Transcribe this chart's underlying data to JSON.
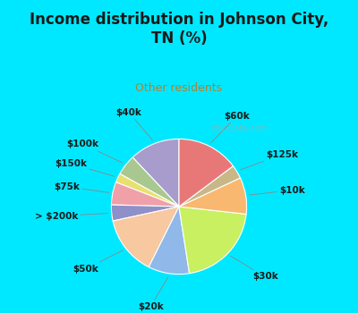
{
  "title": "Income distribution in Johnson City,\nTN (%)",
  "subtitle": "Other residents",
  "title_color": "#1a1a1a",
  "subtitle_color": "#b08030",
  "background_cyan": "#00e8ff",
  "background_chart": "#e0f0e8",
  "watermark": "city-Data.com",
  "slices": [
    {
      "label": "$40k",
      "value": 11.0,
      "color": "#a89ccc"
    },
    {
      "label": "$100k",
      "value": 4.5,
      "color": "#a8c890"
    },
    {
      "label": "$150k",
      "value": 2.0,
      "color": "#e8e070"
    },
    {
      "label": "$75k",
      "value": 5.0,
      "color": "#f0a0a8"
    },
    {
      "label": "> $200k",
      "value": 3.5,
      "color": "#9090c8"
    },
    {
      "label": "$50k",
      "value": 13.0,
      "color": "#f8c8a0"
    },
    {
      "label": "$20k",
      "value": 9.0,
      "color": "#90b8e8"
    },
    {
      "label": "$30k",
      "value": 19.0,
      "color": "#c8f060"
    },
    {
      "label": "$10k",
      "value": 8.0,
      "color": "#f8b870"
    },
    {
      "label": "$125k",
      "value": 3.0,
      "color": "#c8b888"
    },
    {
      "label": "$60k",
      "value": 13.5,
      "color": "#e87878"
    }
  ],
  "label_fontsize": 7.5,
  "label_color": "#1a1a1a",
  "startangle": 90,
  "title_fontsize": 12,
  "subtitle_fontsize": 9
}
